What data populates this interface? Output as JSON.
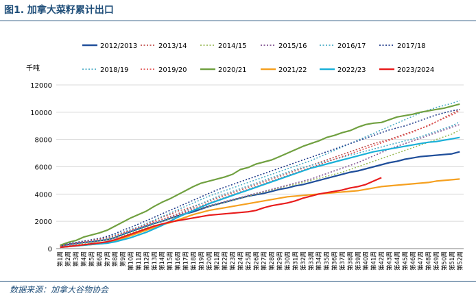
{
  "figure_title": "图1. 加拿大菜籽累计出口",
  "source": "数据来源：加拿大谷物协会",
  "chart_data": {
    "type": "line",
    "title": "",
    "unit_label": "千吨",
    "ylim": [
      0,
      12000
    ],
    "yticks": [
      0,
      2000,
      4000,
      6000,
      8000,
      10000,
      12000
    ],
    "grid": true,
    "legend_position": "top",
    "x": [
      "第1周",
      "第2周",
      "第3周",
      "第4周",
      "第5周",
      "第6周",
      "第7周",
      "第8周",
      "第9周",
      "第10周",
      "第11周",
      "第12周",
      "第13周",
      "第14周",
      "第15周",
      "第16周",
      "第17周",
      "第18周",
      "第19周",
      "第20周",
      "第21周",
      "第22周",
      "第23周",
      "第24周",
      "第25周",
      "第26周",
      "第27周",
      "第28周",
      "第29周",
      "第30周",
      "第31周",
      "第32周",
      "第33周",
      "第34周",
      "第35周",
      "第36周",
      "第37周",
      "第38周",
      "第39周",
      "第40周",
      "第41周",
      "第42周",
      "第43周",
      "第44周",
      "第45周",
      "第46周",
      "第47周",
      "第48周",
      "第49周",
      "第50周",
      "第51周",
      "第52周"
    ],
    "series": [
      {
        "name": "2012/2013",
        "color": "#1f4e9a",
        "dash": "solid",
        "values": [
          200,
          300,
          380,
          450,
          500,
          580,
          650,
          800,
          1050,
          1250,
          1450,
          1650,
          1850,
          2000,
          2200,
          2400,
          2550,
          2700,
          2900,
          3100,
          3250,
          3400,
          3550,
          3700,
          3850,
          3950,
          4050,
          4200,
          4350,
          4450,
          4600,
          4700,
          4850,
          5000,
          5150,
          5300,
          5450,
          5600,
          5700,
          5850,
          6000,
          6150,
          6300,
          6400,
          6550,
          6650,
          6750,
          6800,
          6850,
          6900,
          6950,
          7100
        ]
      },
      {
        "name": "2013/14",
        "color": "#c0504d",
        "dash": "dot",
        "values": [
          200,
          280,
          380,
          460,
          550,
          650,
          750,
          900,
          1100,
          1300,
          1550,
          1800,
          2050,
          2300,
          2500,
          2750,
          2900,
          3100,
          3300,
          3500,
          3700,
          3900,
          4100,
          4300,
          4500,
          4700,
          4900,
          5100,
          5300,
          5500,
          5700,
          5900,
          6100,
          6300,
          6500,
          6700,
          6900,
          7100,
          7300,
          7500,
          7700,
          7850,
          8000,
          8200,
          8400,
          8600,
          8800,
          9000,
          9300,
          9600,
          9900,
          10200
        ]
      },
      {
        "name": "2014/15",
        "color": "#9bbb59",
        "dash": "dot",
        "values": [
          150,
          220,
          300,
          380,
          450,
          550,
          650,
          800,
          950,
          1150,
          1350,
          1550,
          1800,
          2000,
          2200,
          2400,
          2600,
          2800,
          2950,
          3100,
          3250,
          3400,
          3550,
          3700,
          3850,
          4000,
          4150,
          4300,
          4450,
          4600,
          4700,
          4850,
          5000,
          5150,
          5300,
          5450,
          5600,
          5800,
          6000,
          6200,
          6400,
          6600,
          6800,
          7000,
          7200,
          7400,
          7600,
          7800,
          8000,
          8200,
          8400,
          8700
        ]
      },
      {
        "name": "2015/16",
        "color": "#7f4f8f",
        "dash": "dot",
        "values": [
          200,
          300,
          400,
          480,
          560,
          650,
          750,
          900,
          1050,
          1250,
          1450,
          1650,
          1850,
          2050,
          2250,
          2450,
          2650,
          2850,
          3000,
          3150,
          3300,
          3450,
          3600,
          3750,
          3900,
          4050,
          4200,
          4350,
          4500,
          4650,
          4800,
          4950,
          5100,
          5300,
          5500,
          5700,
          5900,
          6100,
          6300,
          6550,
          6800,
          7050,
          7300,
          7500,
          7700,
          7900,
          8100,
          8300,
          8500,
          8700,
          8900,
          9100
        ]
      },
      {
        "name": "2016/17",
        "color": "#4bacc6",
        "dash": "dot",
        "values": [
          250,
          350,
          450,
          550,
          650,
          750,
          850,
          1000,
          1200,
          1400,
          1600,
          1850,
          2100,
          2350,
          2600,
          2850,
          3100,
          3350,
          3600,
          3850,
          4050,
          4250,
          4450,
          4650,
          4850,
          5050,
          5250,
          5450,
          5650,
          5850,
          6050,
          6250,
          6450,
          6700,
          6950,
          7200,
          7450,
          7700,
          7950,
          8200,
          8450,
          8700,
          8950,
          9200,
          9450,
          9700,
          9950,
          10150,
          10350,
          10500,
          10650,
          10850
        ]
      },
      {
        "name": "2017/18",
        "color": "#1f3a8a",
        "dash": "dot",
        "values": [
          250,
          350,
          450,
          550,
          650,
          750,
          900,
          1100,
          1350,
          1550,
          1800,
          2050,
          2300,
          2550,
          2800,
          3050,
          3300,
          3550,
          3800,
          4050,
          4300,
          4500,
          4700,
          4900,
          5100,
          5300,
          5500,
          5700,
          5900,
          6100,
          6300,
          6500,
          6700,
          6900,
          7100,
          7300,
          7500,
          7700,
          7900,
          8100,
          8300,
          8500,
          8700,
          8850,
          9000,
          9200,
          9400,
          9600,
          9800,
          9950,
          10100,
          10200
        ]
      },
      {
        "name": "2018/19",
        "color": "#4bacc6",
        "dash": "dot",
        "values": [
          150,
          250,
          350,
          450,
          550,
          650,
          750,
          900,
          1050,
          1250,
          1450,
          1650,
          1850,
          2050,
          2300,
          2550,
          2800,
          3050,
          3300,
          3550,
          3800,
          4000,
          4200,
          4400,
          4600,
          4800,
          5000,
          5200,
          5400,
          5600,
          5800,
          5950,
          6100,
          6250,
          6400,
          6550,
          6700,
          6850,
          7000,
          7150,
          7300,
          7450,
          7600,
          7750,
          7900,
          8050,
          8200,
          8400,
          8600,
          8800,
          9000,
          9300
        ]
      },
      {
        "name": "2019/20",
        "color": "#e05050",
        "dash": "dot",
        "values": [
          200,
          300,
          400,
          500,
          600,
          700,
          800,
          950,
          1150,
          1350,
          1550,
          1750,
          1950,
          2150,
          2350,
          2550,
          2750,
          2950,
          3150,
          3350,
          3550,
          3750,
          3950,
          4150,
          4350,
          4550,
          4750,
          4950,
          5150,
          5350,
          5550,
          5750,
          5950,
          6150,
          6350,
          6550,
          6750,
          6950,
          7150,
          7350,
          7550,
          7750,
          7950,
          8150,
          8350,
          8550,
          8800,
          9050,
          9300,
          9550,
          9800,
          10100
        ]
      },
      {
        "name": "2020/21",
        "color": "#70a040",
        "dash": "solid",
        "values": [
          250,
          450,
          600,
          850,
          1000,
          1150,
          1350,
          1650,
          1950,
          2250,
          2500,
          2750,
          3100,
          3400,
          3650,
          3950,
          4250,
          4550,
          4800,
          4950,
          5100,
          5250,
          5450,
          5800,
          5950,
          6200,
          6350,
          6500,
          6750,
          7000,
          7250,
          7500,
          7700,
          7900,
          8150,
          8300,
          8500,
          8650,
          8900,
          9100,
          9200,
          9250,
          9450,
          9650,
          9750,
          9850,
          10000,
          10100,
          10200,
          10300,
          10450,
          10600
        ]
      },
      {
        "name": "2021/22",
        "color": "#f5a020",
        "dash": "solid",
        "values": [
          100,
          150,
          200,
          250,
          300,
          350,
          400,
          550,
          750,
          950,
          1150,
          1350,
          1550,
          1750,
          1900,
          2100,
          2300,
          2500,
          2650,
          2800,
          2900,
          3000,
          3100,
          3200,
          3300,
          3400,
          3500,
          3600,
          3700,
          3800,
          3850,
          3900,
          3950,
          4000,
          4050,
          4100,
          4150,
          4200,
          4250,
          4350,
          4450,
          4550,
          4600,
          4650,
          4700,
          4750,
          4800,
          4850,
          4950,
          5000,
          5050,
          5100
        ]
      },
      {
        "name": "2022/23",
        "color": "#1ab0d8",
        "dash": "solid",
        "values": [
          100,
          150,
          200,
          250,
          300,
          350,
          400,
          500,
          650,
          800,
          1000,
          1200,
          1450,
          1700,
          2000,
          2300,
          2550,
          2800,
          3050,
          3300,
          3500,
          3700,
          3900,
          4100,
          4300,
          4500,
          4700,
          4900,
          5100,
          5300,
          5500,
          5700,
          5900,
          6050,
          6200,
          6350,
          6500,
          6650,
          6800,
          6950,
          7100,
          7200,
          7300,
          7400,
          7500,
          7600,
          7700,
          7800,
          7850,
          7950,
          8050,
          8150
        ]
      },
      {
        "name": "2023/2024",
        "color": "#e81c1c",
        "dash": "solid",
        "values": [
          100,
          150,
          220,
          280,
          350,
          420,
          500,
          650,
          850,
          1050,
          1250,
          1450,
          1650,
          1800,
          1950,
          2050,
          2150,
          2250,
          2350,
          2450,
          2500,
          2550,
          2600,
          2650,
          2700,
          2800,
          3000,
          3150,
          3250,
          3350,
          3500,
          3700,
          3850,
          4000,
          4100,
          4200,
          4300,
          4450,
          4550,
          4700,
          4950,
          5200,
          null,
          null,
          null,
          null,
          null,
          null,
          null,
          null,
          null,
          null
        ]
      }
    ]
  }
}
